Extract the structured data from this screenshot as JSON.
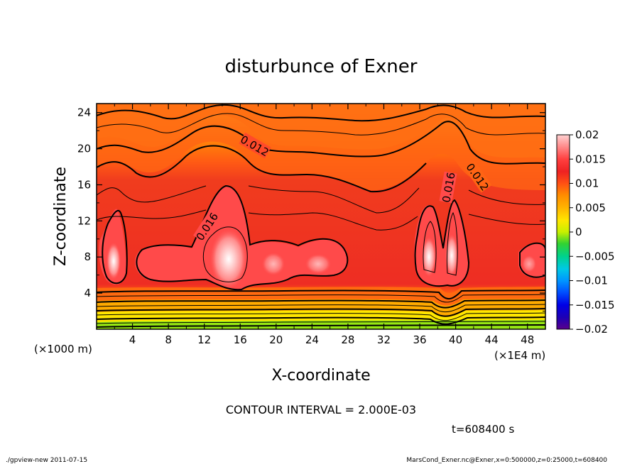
{
  "chart_data": {
    "type": "heatmap",
    "title": "disturbunce of Exner",
    "xlabel": "X-coordinate",
    "ylabel": "Z-coordinate",
    "x_unit_left": "(×1000 m)",
    "x_unit_right": "(×1E4 m)",
    "xlim": [
      0,
      50
    ],
    "ylim": [
      0,
      25
    ],
    "x_ticks": [
      4,
      8,
      12,
      16,
      20,
      24,
      28,
      32,
      36,
      40,
      44,
      48
    ],
    "y_ticks": [
      4,
      8,
      12,
      16,
      20,
      24
    ],
    "colorbar": {
      "ticks": [
        0.02,
        0.015,
        0.01,
        0.005,
        0,
        -0.005,
        -0.01,
        -0.015,
        -0.02
      ],
      "tick_labels": [
        "0.02",
        "0.015",
        "0.01",
        "0.005",
        "0",
        "−0.005",
        "−0.01",
        "−0.015",
        "−0.02"
      ],
      "range": [
        -0.02,
        0.02
      ]
    },
    "contour_labels": [
      {
        "text": "0.012",
        "x": 17.5,
        "z": 20.8
      },
      {
        "text": "0.016",
        "x": 12.3,
        "z": 11.3
      },
      {
        "text": "0.016",
        "x": 38.8,
        "z": 15.0
      },
      {
        "text": "0.012",
        "x": 42.3,
        "z": 16.8
      }
    ],
    "contour_interval": "CONTOUR INTERVAL = 2.000E-03",
    "time_label": "t=608400  s",
    "footer_left": "./gpview-new   2011-07-15",
    "footer_right": "MarsCond_Exner.nc@Exner,x=0:500000,z=0:25000,t=608400"
  }
}
